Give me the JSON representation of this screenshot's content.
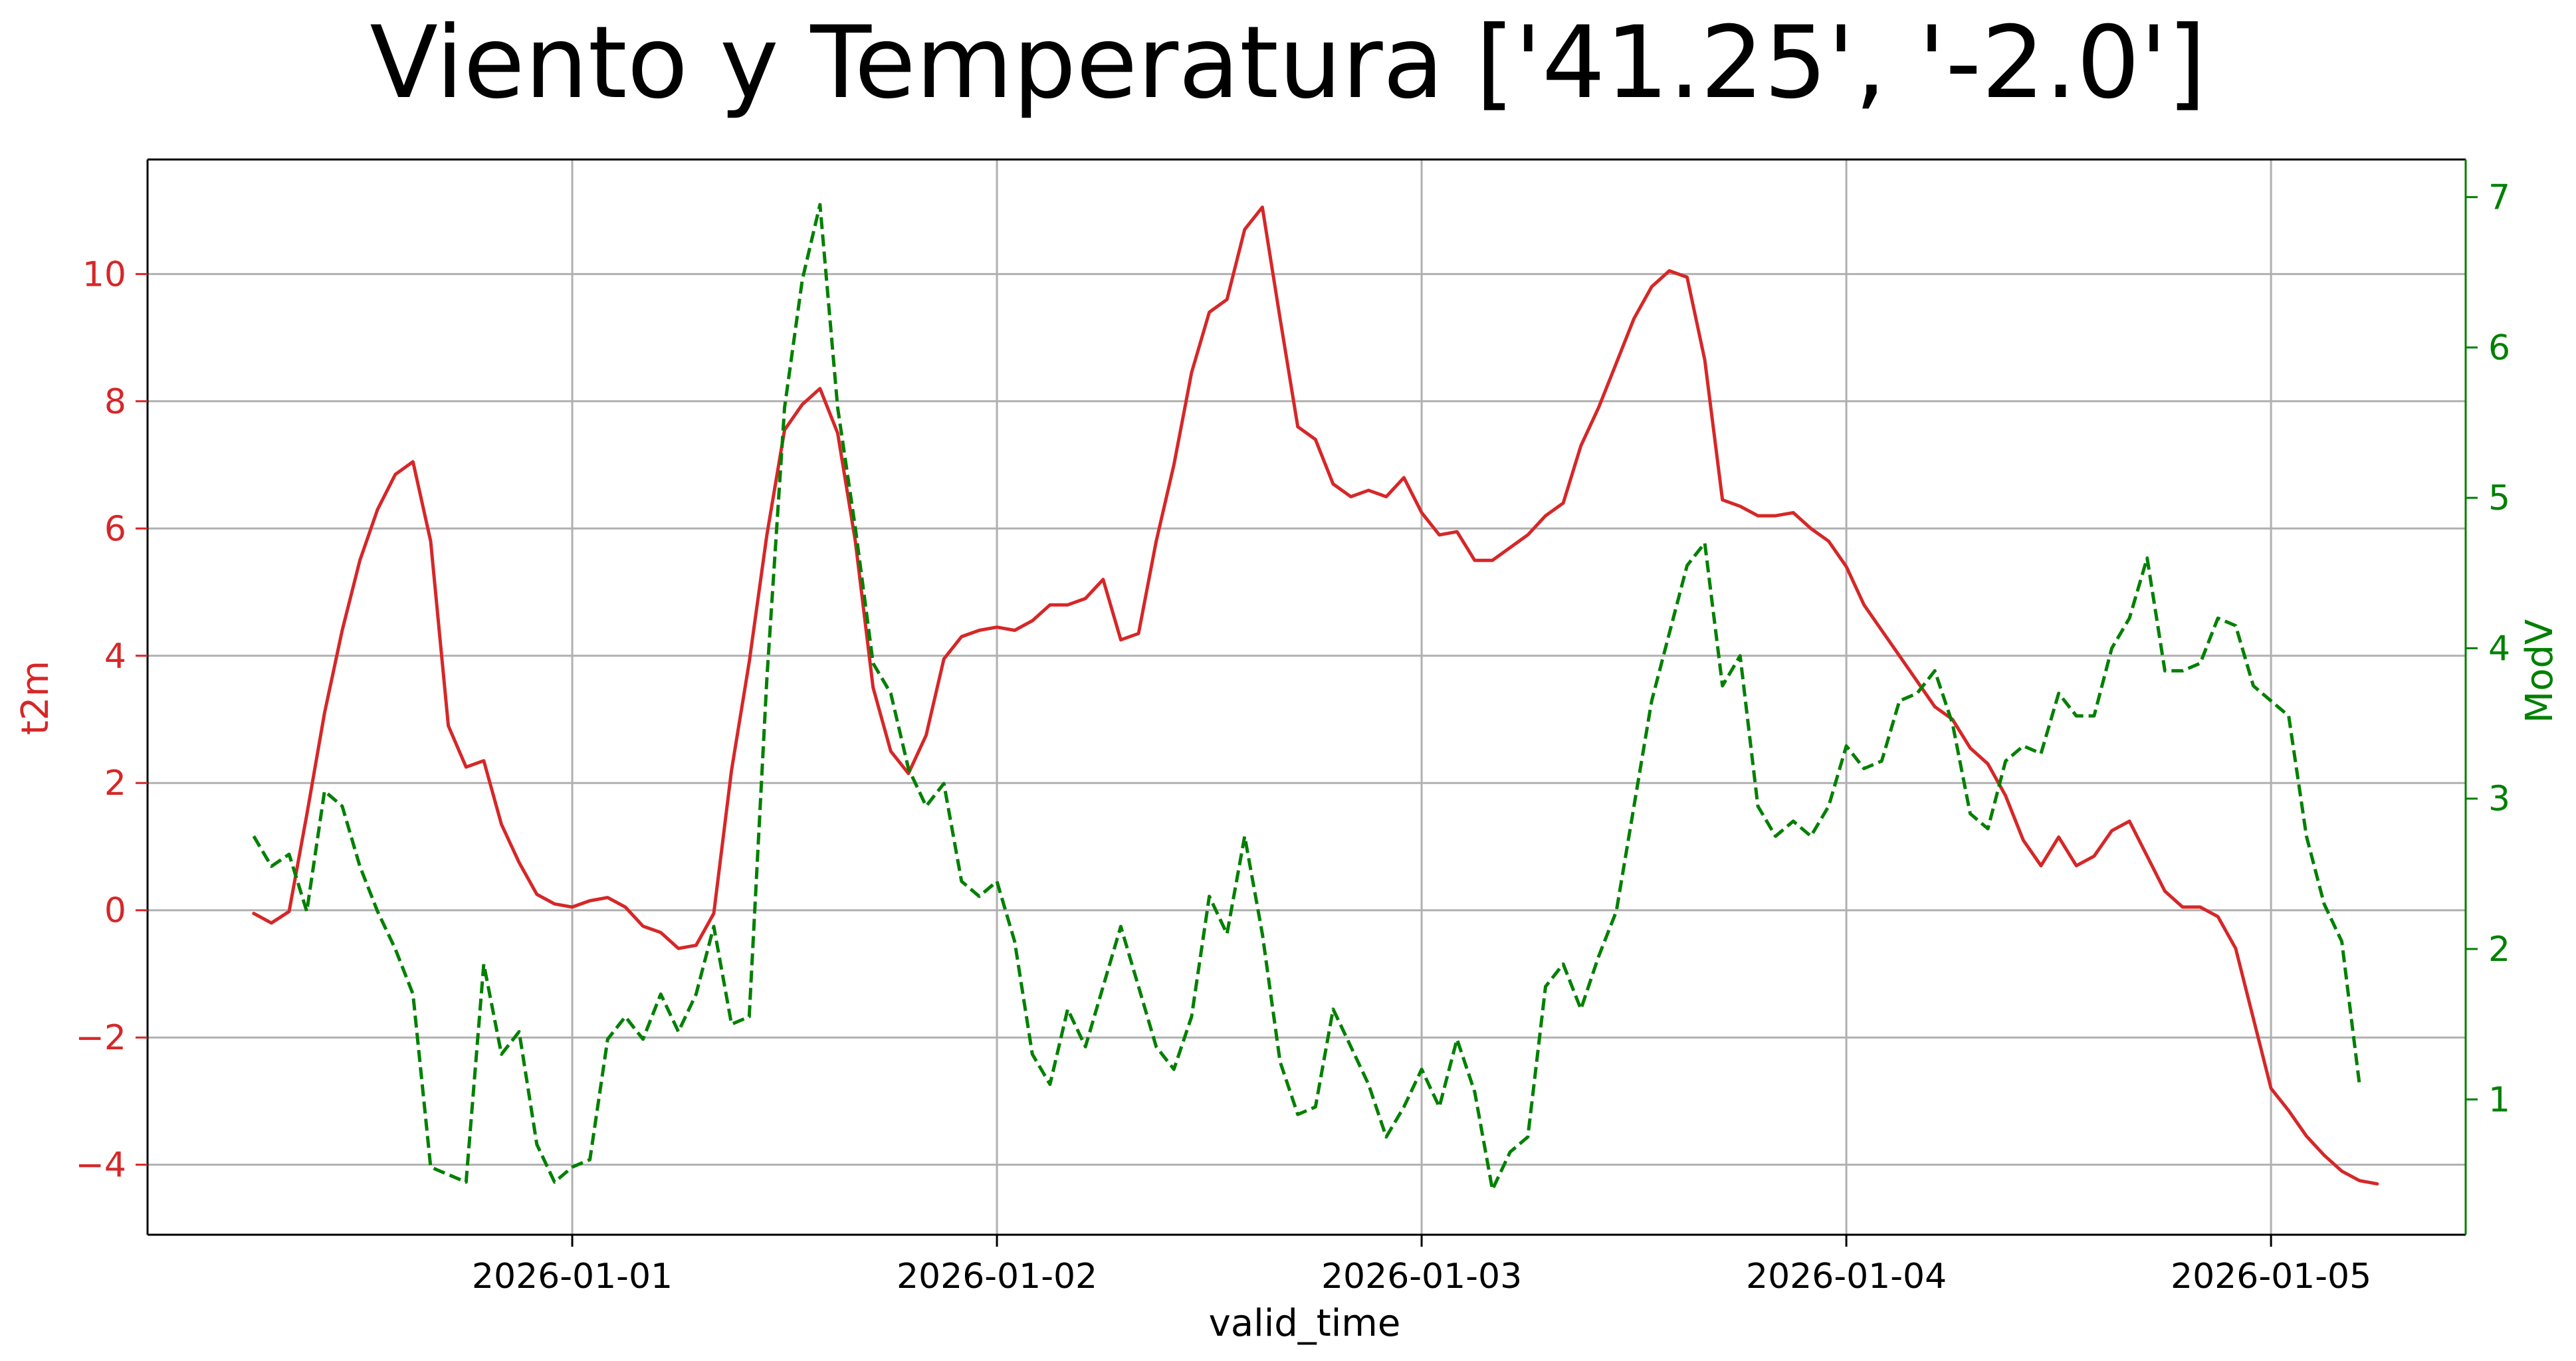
{
  "chart_data": {
    "type": "line",
    "title": "Viento y Temperatura ['41.25', '-2.0']",
    "xlabel": "valid_time",
    "ylabel_left": "t2m",
    "ylabel_right": "ModV",
    "grid": true,
    "x_start": "2025-12-31 00:00",
    "x_tick_labels": [
      "2026-01-01",
      "2026-01-02",
      "2026-01-03",
      "2026-01-04",
      "2026-01-05"
    ],
    "xlim": [
      "2025-12-31 00:00",
      "2026-01-05 11:00"
    ],
    "ylim_left": [
      -5.1,
      11.8
    ],
    "ylim_right": [
      0.1,
      7.25
    ],
    "y_ticks_left": [
      -4,
      -2,
      0,
      2,
      4,
      6,
      8,
      10
    ],
    "y_ticks_right": [
      1,
      2,
      3,
      4,
      5,
      6,
      7
    ],
    "colors": {
      "left": "#d62728",
      "right": "#008000"
    },
    "series": [
      {
        "name": "t2m",
        "axis": "left",
        "style": "solid",
        "color": "#d62728",
        "x_start": "2025-12-31 06:00",
        "step_hours": 1,
        "values": [
          -0.05,
          -0.2,
          -0.02,
          1.5,
          3.1,
          4.4,
          5.5,
          6.3,
          6.85,
          7.05,
          5.8,
          2.9,
          2.25,
          2.35,
          1.35,
          0.75,
          0.25,
          0.1,
          0.05,
          0.15,
          0.2,
          0.05,
          -0.25,
          -0.35,
          -0.6,
          -0.55,
          -0.05,
          2.2,
          3.9,
          5.9,
          7.55,
          7.95,
          8.2,
          7.5,
          5.8,
          3.5,
          2.5,
          2.15,
          2.75,
          3.95,
          4.3,
          4.4,
          4.45,
          4.4,
          4.55,
          4.8,
          4.8,
          4.9,
          5.2,
          4.25,
          4.35,
          5.8,
          7.0,
          8.45,
          9.4,
          9.6,
          10.7,
          11.05,
          9.3,
          7.6,
          7.4,
          6.7,
          6.5,
          6.6,
          6.5,
          6.8,
          6.25,
          5.9,
          5.95,
          5.5,
          5.5,
          5.7,
          5.9,
          6.2,
          6.4,
          7.3,
          7.9,
          8.6,
          9.3,
          9.8,
          10.05,
          9.95,
          8.65,
          6.45,
          6.35,
          6.2,
          6.2,
          6.25,
          6.0,
          5.8,
          5.4,
          4.8,
          4.4,
          4.0,
          3.6,
          3.2,
          3.0,
          2.55,
          2.3,
          1.8,
          1.1,
          0.7,
          1.15,
          0.7,
          0.85,
          1.25,
          1.4,
          0.85,
          0.3,
          0.05,
          0.05,
          -0.1,
          -0.6,
          -1.7,
          -2.8,
          -3.15,
          -3.55,
          -3.85,
          -4.1,
          -4.25,
          -4.3
        ]
      },
      {
        "name": "ModV",
        "axis": "right",
        "style": "dashed",
        "color": "#008000",
        "x_start": "2025-12-31 06:00",
        "step_hours": 1,
        "values": [
          2.75,
          2.55,
          2.63,
          2.25,
          3.05,
          2.95,
          2.55,
          2.25,
          2.0,
          1.7,
          0.55,
          0.5,
          0.45,
          1.9,
          1.3,
          1.45,
          0.7,
          0.45,
          0.55,
          0.6,
          1.4,
          1.55,
          1.4,
          1.7,
          1.45,
          1.7,
          2.15,
          1.5,
          1.55,
          3.8,
          5.6,
          6.45,
          6.95,
          5.6,
          4.8,
          3.9,
          3.7,
          3.2,
          2.95,
          3.1,
          2.45,
          2.35,
          2.45,
          2.05,
          1.3,
          1.1,
          1.6,
          1.35,
          1.75,
          2.15,
          1.75,
          1.35,
          1.2,
          1.55,
          2.35,
          2.1,
          2.75,
          2.1,
          1.25,
          0.9,
          0.95,
          1.6,
          1.35,
          1.1,
          0.75,
          0.95,
          1.2,
          0.95,
          1.4,
          1.05,
          0.4,
          0.65,
          0.75,
          1.75,
          1.9,
          1.6,
          1.95,
          2.25,
          2.95,
          3.65,
          4.1,
          4.55,
          4.7,
          3.75,
          3.95,
          2.95,
          2.75,
          2.85,
          2.75,
          2.95,
          3.35,
          3.2,
          3.25,
          3.65,
          3.7,
          3.85,
          3.5,
          2.9,
          2.8,
          3.25,
          3.35,
          3.3,
          3.7,
          3.55,
          3.55,
          4.0,
          4.2,
          4.6,
          3.85,
          3.85,
          3.9,
          4.2,
          4.15,
          3.75,
          3.65,
          3.55,
          2.75,
          2.3,
          2.05,
          1.1
        ]
      }
    ]
  }
}
